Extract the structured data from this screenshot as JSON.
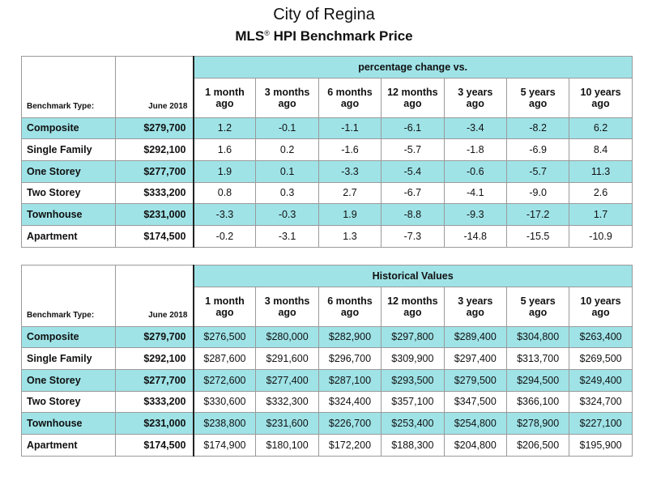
{
  "title": "City of Regina",
  "subtitle_pre": "MLS",
  "subtitle_reg": "®",
  "subtitle_post": " HPI Benchmark Price",
  "header": {
    "benchmark_type": "Benchmark Type:",
    "date": "June 2018",
    "periods": [
      [
        "1 month",
        "ago"
      ],
      [
        "3 months",
        "ago"
      ],
      [
        "6 months",
        "ago"
      ],
      [
        "12 months",
        "ago"
      ],
      [
        "3 years",
        "ago"
      ],
      [
        "5 years",
        "ago"
      ],
      [
        "10 years",
        "ago"
      ]
    ]
  },
  "pct_table": {
    "band": "percentage change vs.",
    "rows": [
      {
        "type": "Composite",
        "price": "$279,700",
        "values": [
          "1.2",
          "-0.1",
          "-1.1",
          "-6.1",
          "-3.4",
          "-8.2",
          "6.2"
        ]
      },
      {
        "type": "Single Family",
        "price": "$292,100",
        "values": [
          "1.6",
          "0.2",
          "-1.6",
          "-5.7",
          "-1.8",
          "-6.9",
          "8.4"
        ]
      },
      {
        "type": "One Storey",
        "price": "$277,700",
        "values": [
          "1.9",
          "0.1",
          "-3.3",
          "-5.4",
          "-0.6",
          "-5.7",
          "11.3"
        ]
      },
      {
        "type": "Two Storey",
        "price": "$333,200",
        "values": [
          "0.8",
          "0.3",
          "2.7",
          "-6.7",
          "-4.1",
          "-9.0",
          "2.6"
        ]
      },
      {
        "type": "Townhouse",
        "price": "$231,000",
        "values": [
          "-3.3",
          "-0.3",
          "1.9",
          "-8.8",
          "-9.3",
          "-17.2",
          "1.7"
        ]
      },
      {
        "type": "Apartment",
        "price": "$174,500",
        "values": [
          "-0.2",
          "-3.1",
          "1.3",
          "-7.3",
          "-14.8",
          "-15.5",
          "-10.9"
        ]
      }
    ]
  },
  "hist_table": {
    "band": "Historical Values",
    "rows": [
      {
        "type": "Composite",
        "price": "$279,700",
        "values": [
          "$276,500",
          "$280,000",
          "$282,900",
          "$297,800",
          "$289,400",
          "$304,800",
          "$263,400"
        ]
      },
      {
        "type": "Single Family",
        "price": "$292,100",
        "values": [
          "$287,600",
          "$291,600",
          "$296,700",
          "$309,900",
          "$297,400",
          "$313,700",
          "$269,500"
        ]
      },
      {
        "type": "One Storey",
        "price": "$277,700",
        "values": [
          "$272,600",
          "$277,400",
          "$287,100",
          "$293,500",
          "$279,500",
          "$294,500",
          "$249,400"
        ]
      },
      {
        "type": "Two Storey",
        "price": "$333,200",
        "values": [
          "$330,600",
          "$332,300",
          "$324,400",
          "$357,100",
          "$347,500",
          "$366,100",
          "$324,700"
        ]
      },
      {
        "type": "Townhouse",
        "price": "$231,000",
        "values": [
          "$238,800",
          "$231,600",
          "$226,700",
          "$253,400",
          "$254,800",
          "$278,900",
          "$227,100"
        ]
      },
      {
        "type": "Apartment",
        "price": "$174,500",
        "values": [
          "$174,900",
          "$180,100",
          "$172,200",
          "$188,300",
          "$204,800",
          "$206,500",
          "$195,900"
        ]
      }
    ]
  }
}
